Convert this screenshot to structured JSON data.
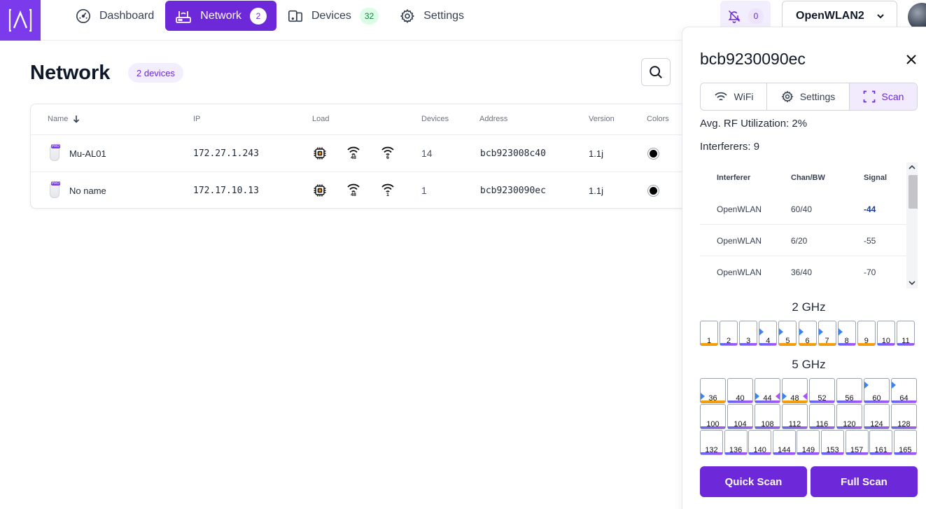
{
  "nav": {
    "items": [
      {
        "label": "Dashboard",
        "count": null,
        "icon": "gauge-icon"
      },
      {
        "label": "Network",
        "count": "2",
        "icon": "router-icon"
      },
      {
        "label": "Devices",
        "count": "32",
        "icon": "devices-icon"
      },
      {
        "label": "Settings",
        "count": null,
        "icon": "gear-icon"
      }
    ],
    "notifications_count": "0",
    "venue": "OpenWLAN2"
  },
  "main": {
    "title": "Network",
    "devices_badge": "2 devices",
    "columns": [
      "Name",
      "IP",
      "Load",
      "Devices",
      "Address",
      "Version",
      "Colors"
    ],
    "rows": [
      {
        "name": "Mu-AL01",
        "ip": "172.27.1.243",
        "wifi24": "48",
        "wifi5": "6",
        "devices": "14",
        "address": "bcb923008c40",
        "version": "1.1j"
      },
      {
        "name": "No name",
        "ip": "172.17.10.13",
        "wifi24": "48",
        "wifi5": "1",
        "devices": "1",
        "address": "bcb9230090ec",
        "version": "1.1j"
      }
    ]
  },
  "panel": {
    "title": "bcb9230090ec",
    "tabs": [
      "WiFi",
      "Settings",
      "Scan"
    ],
    "rf_utilization": "Avg. RF Utilization: 2%",
    "interferers": "Interferers: 9",
    "table_headers": [
      "Interferer",
      "Chan/BW",
      "Signal"
    ],
    "table_rows": [
      {
        "name": "OpenWLAN",
        "chan": "60/40",
        "signal": "-44"
      },
      {
        "name": "OpenWLAN",
        "chan": "6/20",
        "signal": "-55"
      },
      {
        "name": "OpenWLAN",
        "chan": "36/40",
        "signal": "-70"
      }
    ],
    "band24_title": "2 GHz",
    "band5_title": "5 GHz",
    "channels24": [
      "1",
      "2",
      "3",
      "4",
      "5",
      "6",
      "7",
      "8",
      "9",
      "10",
      "11"
    ],
    "channels5_row1": [
      "36",
      "40",
      "44",
      "48",
      "52",
      "56",
      "60",
      "64"
    ],
    "channels5_row2": [
      "100",
      "104",
      "108",
      "112",
      "116",
      "120",
      "124",
      "128"
    ],
    "channels5_row3": [
      "132",
      "136",
      "140",
      "144",
      "149",
      "153",
      "157",
      "161",
      "165"
    ],
    "quick_scan": "Quick Scan",
    "full_scan": "Full Scan"
  },
  "colors": {
    "accent": "#6d28d9",
    "accent_light": "#f1ebfd",
    "channel_busy": "#f59e0b",
    "channel_marker_blue": "#3b82f6",
    "channel_marker_purple": "#a855f7"
  }
}
